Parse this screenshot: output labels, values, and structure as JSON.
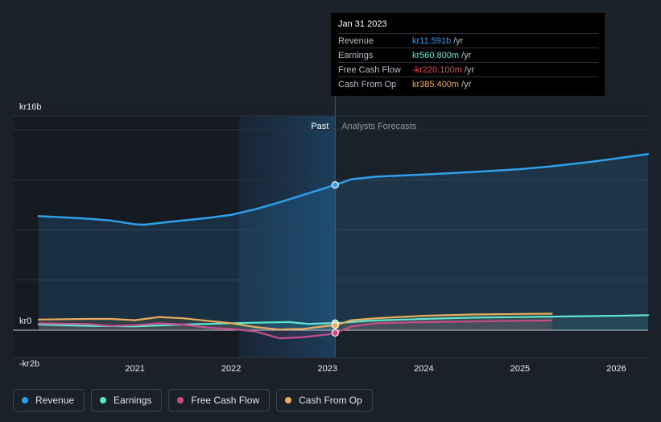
{
  "tooltip": {
    "date": "Jan 31 2023",
    "rows": [
      {
        "label": "Revenue",
        "value": "kr11.591b",
        "unit": "/yr",
        "color": "#2f9fec"
      },
      {
        "label": "Earnings",
        "value": "kr560.800m",
        "unit": "/yr",
        "color": "#5ee6cf"
      },
      {
        "label": "Free Cash Flow",
        "value": "-kr220.100m",
        "unit": "/yr",
        "color": "#f0474a"
      },
      {
        "label": "Cash From Op",
        "value": "kr385.400m",
        "unit": "/yr",
        "color": "#e9ad5d"
      }
    ]
  },
  "legend": [
    {
      "label": "Revenue",
      "color": "#2f9fec"
    },
    {
      "label": "Earnings",
      "color": "#5ee6cf"
    },
    {
      "label": "Free Cash Flow",
      "color": "#c84b8e"
    },
    {
      "label": "Cash From Op",
      "color": "#e9ad5d"
    }
  ],
  "chart_data": {
    "type": "line",
    "title": "",
    "y_unit": "kr billions",
    "ylim": [
      -2,
      16
    ],
    "xlim": [
      2020.0,
      2026.33
    ],
    "y_tick_labels": [
      {
        "value": 16,
        "label": "kr16b"
      },
      {
        "value": 0,
        "label": "kr0"
      },
      {
        "value": -2,
        "label": "-kr2b"
      }
    ],
    "x_ticks": [
      2021,
      2022,
      2023,
      2024,
      2025,
      2026
    ],
    "x_tick_labels": [
      "2021",
      "2022",
      "2023",
      "2024",
      "2025",
      "2026"
    ],
    "divider": 2023.08,
    "past_label": "Past",
    "forecast_label": "Analysts Forecasts",
    "series": [
      {
        "name": "Revenue",
        "color": "#2f9fec",
        "x": [
          2020.0,
          2020.25,
          2020.5,
          2020.75,
          2021.0,
          2021.1,
          2021.25,
          2021.5,
          2021.75,
          2022.0,
          2022.25,
          2022.5,
          2022.75,
          2023.0,
          2023.08,
          2023.25,
          2023.5,
          2024.0,
          2024.5,
          2025.0,
          2025.3,
          2025.75,
          2026.0,
          2026.33
        ],
        "values": [
          9.1,
          9.0,
          8.9,
          8.75,
          8.45,
          8.42,
          8.55,
          8.75,
          8.95,
          9.2,
          9.65,
          10.2,
          10.8,
          11.4,
          11.591,
          12.05,
          12.25,
          12.42,
          12.62,
          12.85,
          13.05,
          13.45,
          13.7,
          14.05
        ]
      },
      {
        "name": "Earnings",
        "color": "#5ee6cf",
        "x": [
          2020.0,
          2020.5,
          2021.0,
          2021.5,
          2022.0,
          2022.25,
          2022.6,
          2022.8,
          2023.0,
          2023.08,
          2023.5,
          2024.0,
          2024.5,
          2025.0,
          2025.5,
          2026.0,
          2026.33
        ],
        "values": [
          0.45,
          0.35,
          0.3,
          0.45,
          0.55,
          0.6,
          0.65,
          0.5,
          0.55,
          0.56,
          0.78,
          0.9,
          1.0,
          1.05,
          1.1,
          1.15,
          1.2
        ]
      },
      {
        "name": "Free Cash Flow",
        "color": "#c84b8e",
        "x": [
          2020.0,
          2020.5,
          2020.75,
          2021.0,
          2021.25,
          2021.5,
          2021.75,
          2022.0,
          2022.25,
          2022.5,
          2022.75,
          2023.0,
          2023.08,
          2023.25,
          2023.5,
          2024.0,
          2024.5,
          2025.0,
          2025.33
        ],
        "values": [
          0.55,
          0.5,
          0.35,
          0.4,
          0.55,
          0.45,
          0.2,
          0.1,
          -0.1,
          -0.65,
          -0.55,
          -0.35,
          -0.22,
          0.3,
          0.55,
          0.65,
          0.7,
          0.75,
          0.78
        ]
      },
      {
        "name": "Cash From Op",
        "color": "#e9ad5d",
        "x": [
          2020.0,
          2020.5,
          2020.75,
          2021.0,
          2021.25,
          2021.5,
          2021.75,
          2022.0,
          2022.25,
          2022.5,
          2022.75,
          2023.0,
          2023.08,
          2023.25,
          2023.5,
          2024.0,
          2024.5,
          2025.0,
          2025.33
        ],
        "values": [
          0.85,
          0.9,
          0.9,
          0.8,
          1.05,
          0.95,
          0.75,
          0.55,
          0.25,
          0.05,
          0.1,
          0.35,
          0.385,
          0.8,
          0.95,
          1.15,
          1.25,
          1.3,
          1.32
        ]
      }
    ],
    "highlight_x": 2023.08
  }
}
